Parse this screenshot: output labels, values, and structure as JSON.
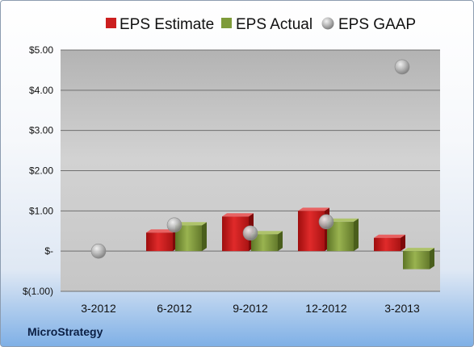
{
  "company": "MicroStrategy",
  "chart_data": {
    "type": "bar",
    "categories": [
      "3-2012",
      "6-2012",
      "9-2012",
      "12-2012",
      "3-2013"
    ],
    "series": [
      {
        "name": "EPS Estimate",
        "kind": "bar",
        "color": "#cc1f1f",
        "values": [
          null,
          0.46,
          0.86,
          1.0,
          0.33
        ]
      },
      {
        "name": "EPS Actual",
        "kind": "bar",
        "color": "#7e9b3a",
        "values": [
          null,
          0.64,
          0.42,
          0.73,
          -0.45
        ]
      },
      {
        "name": "EPS GAAP",
        "kind": "bubble",
        "color": "#a8a8a8",
        "values": [
          0.0,
          0.65,
          0.45,
          0.73,
          4.58
        ]
      }
    ],
    "ylim": [
      -1.0,
      5.0
    ],
    "y_ticks": [
      5.0,
      4.0,
      3.0,
      2.0,
      1.0,
      0.0,
      -1.0
    ],
    "y_tick_labels": [
      "$5.00",
      "$4.00",
      "$3.00",
      "$2.00",
      "$1.00",
      "$-",
      "$(1.00)"
    ],
    "grid": true,
    "legend_position": "top"
  }
}
